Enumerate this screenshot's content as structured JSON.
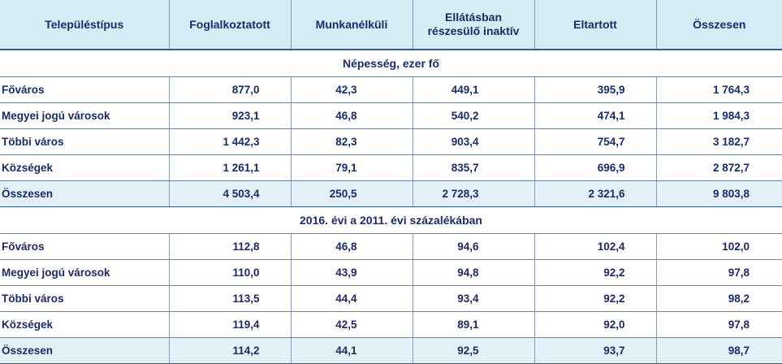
{
  "header": {
    "col0": "Településtípus",
    "col1": "Foglalkoztatott",
    "col2": "Munkanélküli",
    "col3": "Ellátásban részesülő inaktív",
    "col4": "Eltartott",
    "col5": "Összesen"
  },
  "sections": [
    {
      "title": "Népesség, ezer fő",
      "rows": [
        {
          "label": "Főváros",
          "values": [
            "877,0",
            "42,3",
            "449,1",
            "395,9",
            "1 764,3"
          ]
        },
        {
          "label": "Megyei jogú városok",
          "values": [
            "923,1",
            "46,8",
            "540,2",
            "474,1",
            "1 984,3"
          ]
        },
        {
          "label": "Többi város",
          "values": [
            "1 442,3",
            "82,3",
            "903,4",
            "754,7",
            "3 182,7"
          ]
        },
        {
          "label": "Községek",
          "values": [
            "1 261,1",
            "79,1",
            "835,7",
            "696,9",
            "2 872,7"
          ]
        },
        {
          "label": "Összesen",
          "values": [
            "4 503,4",
            "250,5",
            "2 728,3",
            "2 321,6",
            "9 803,8"
          ]
        }
      ]
    },
    {
      "title": "2016. évi a 2011. évi százalékában",
      "rows": [
        {
          "label": "Főváros",
          "values": [
            "112,8",
            "46,8",
            "94,6",
            "102,4",
            "102,0"
          ]
        },
        {
          "label": "Megyei jogú városok",
          "values": [
            "110,0",
            "43,9",
            "94,8",
            "92,2",
            "97,8"
          ]
        },
        {
          "label": "Többi város",
          "values": [
            "113,5",
            "44,4",
            "93,4",
            "92,2",
            "98,2"
          ]
        },
        {
          "label": "Községek",
          "values": [
            "119,4",
            "42,5",
            "89,1",
            "92,0",
            "97,8"
          ]
        },
        {
          "label": "Összesen",
          "values": [
            "114,2",
            "44,1",
            "92,5",
            "93,7",
            "98,7"
          ]
        }
      ]
    }
  ]
}
